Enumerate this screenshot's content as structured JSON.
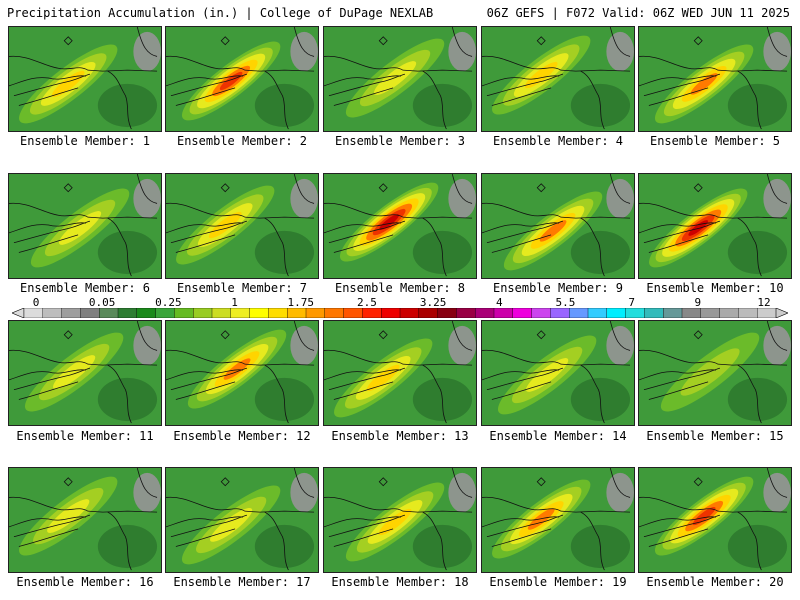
{
  "header": {
    "left": "Precipitation Accumulation (in.) | College of DuPage NEXLAB",
    "right": "06Z GEFS | F072 Valid: 06Z WED JUN 11 2025"
  },
  "members": [
    {
      "label": "Ensemble Member: 1",
      "max_in": 1.5
    },
    {
      "label": "Ensemble Member: 2",
      "max_in": 2.5
    },
    {
      "label": "Ensemble Member: 3",
      "max_in": 1.0
    },
    {
      "label": "Ensemble Member: 4",
      "max_in": 1.5
    },
    {
      "label": "Ensemble Member: 5",
      "max_in": 2.0
    },
    {
      "label": "Ensemble Member: 6",
      "max_in": 1.0
    },
    {
      "label": "Ensemble Member: 7",
      "max_in": 1.5
    },
    {
      "label": "Ensemble Member: 8",
      "max_in": 3.0
    },
    {
      "label": "Ensemble Member: 9",
      "max_in": 2.0
    },
    {
      "label": "Ensemble Member: 10",
      "max_in": 3.0
    },
    {
      "label": "Ensemble Member: 11",
      "max_in": 1.0
    },
    {
      "label": "Ensemble Member: 12",
      "max_in": 2.0
    },
    {
      "label": "Ensemble Member: 13",
      "max_in": 1.5
    },
    {
      "label": "Ensemble Member: 14",
      "max_in": 1.0
    },
    {
      "label": "Ensemble Member: 15",
      "max_in": 0.75
    },
    {
      "label": "Ensemble Member: 16",
      "max_in": 1.0
    },
    {
      "label": "Ensemble Member: 17",
      "max_in": 1.0
    },
    {
      "label": "Ensemble Member: 18",
      "max_in": 1.5
    },
    {
      "label": "Ensemble Member: 19",
      "max_in": 2.0
    },
    {
      "label": "Ensemble Member: 20",
      "max_in": 2.5
    }
  ],
  "colorbar": {
    "labels": [
      "0",
      "0.05",
      "0.25",
      "1",
      "1.75",
      "2.5",
      "3.25",
      "4",
      "5.5",
      "7",
      "9",
      "12"
    ],
    "colors": [
      "#dcdcdc",
      "#bdbdbd",
      "#9e9e9e",
      "#7f7f7f",
      "#5a8a5a",
      "#2e7d32",
      "#1b8a1b",
      "#3aa53a",
      "#66bb22",
      "#99cc22",
      "#ccdd22",
      "#eeee22",
      "#ffff00",
      "#ffdd00",
      "#ffbb00",
      "#ff9900",
      "#ff7700",
      "#ff5500",
      "#ff2200",
      "#ee0000",
      "#cc0000",
      "#aa0000",
      "#880011",
      "#990044",
      "#aa0077",
      "#cc00aa",
      "#ee00dd",
      "#cc44ee",
      "#9966ff",
      "#6699ff",
      "#33ccff",
      "#00eeff",
      "#22dddd",
      "#33bbbb",
      "#669999",
      "#888888",
      "#999999",
      "#aaaaaa",
      "#bbbbbb",
      "#cccccc"
    ]
  }
}
